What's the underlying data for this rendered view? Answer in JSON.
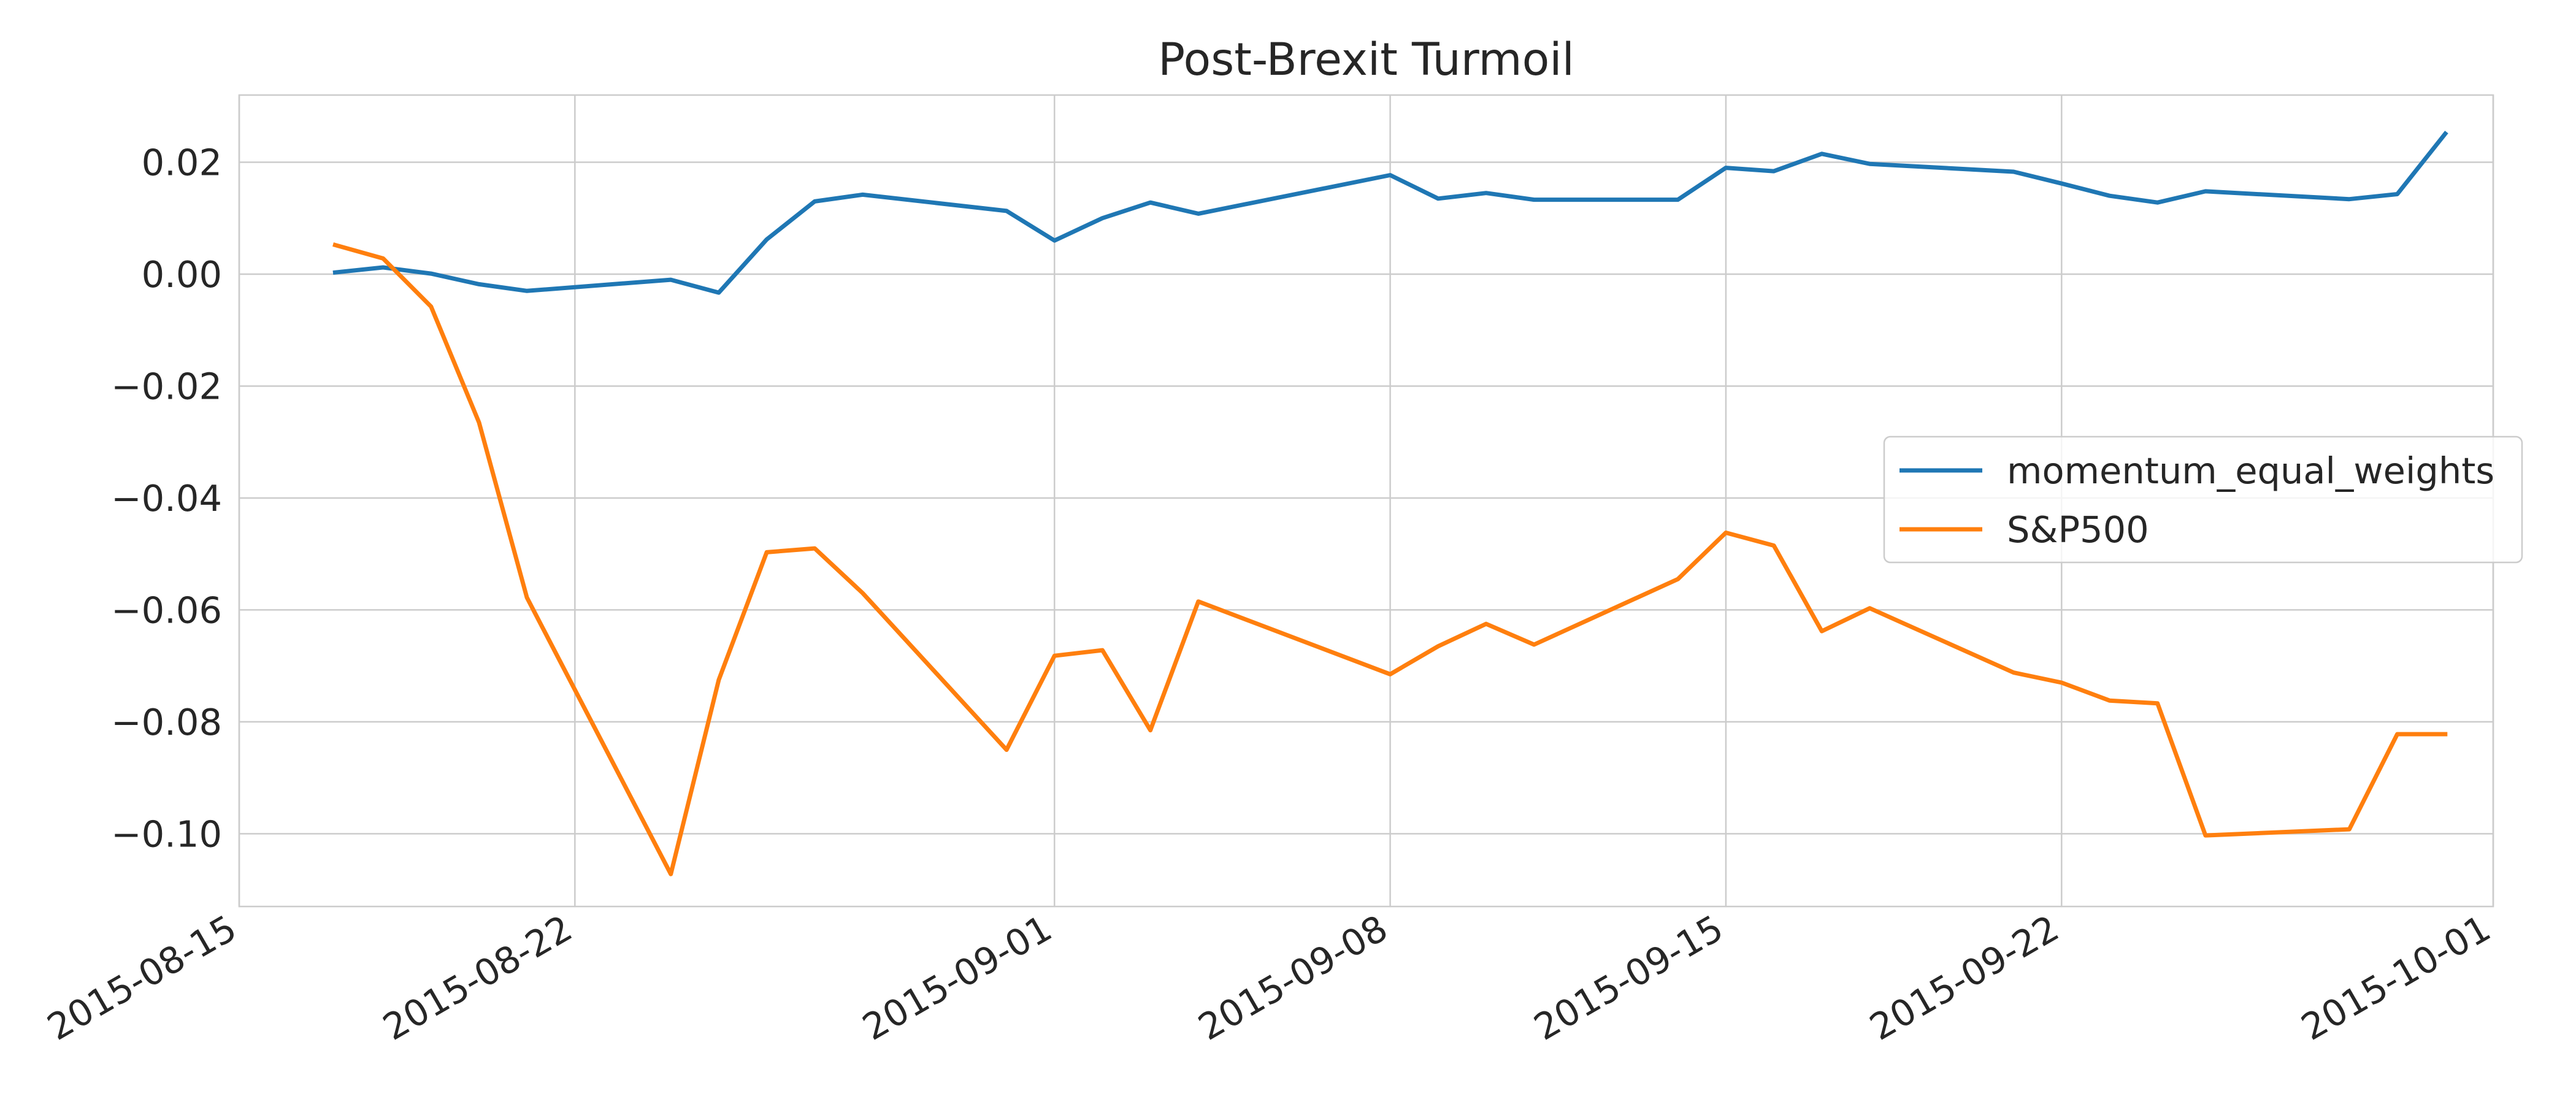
{
  "chart_data": {
    "type": "line",
    "title": "Post-Brexit Turmoil",
    "xlabel": "",
    "ylabel": "",
    "x_type": "date",
    "xlim": [
      "2015-08-15",
      "2015-10-01"
    ],
    "ylim": [
      -0.113,
      0.032
    ],
    "x_ticks": [
      "2015-08-15",
      "2015-08-22",
      "2015-09-01",
      "2015-09-08",
      "2015-09-15",
      "2015-09-22",
      "2015-10-01"
    ],
    "y_ticks": [
      0.02,
      0.0,
      -0.02,
      -0.04,
      -0.06,
      -0.08,
      -0.1
    ],
    "y_tick_labels": [
      "0.02",
      "0.00",
      "−0.02",
      "−0.04",
      "−0.06",
      "−0.08",
      "−0.10"
    ],
    "grid": true,
    "legend_position": "center-right",
    "x": [
      "2015-08-17",
      "2015-08-18",
      "2015-08-19",
      "2015-08-20",
      "2015-08-21",
      "2015-08-24",
      "2015-08-25",
      "2015-08-26",
      "2015-08-27",
      "2015-08-28",
      "2015-08-31",
      "2015-09-01",
      "2015-09-02",
      "2015-09-03",
      "2015-09-04",
      "2015-09-08",
      "2015-09-09",
      "2015-09-10",
      "2015-09-11",
      "2015-09-14",
      "2015-09-15",
      "2015-09-16",
      "2015-09-17",
      "2015-09-18",
      "2015-09-21",
      "2015-09-22",
      "2015-09-23",
      "2015-09-24",
      "2015-09-25",
      "2015-09-28",
      "2015-09-29",
      "2015-09-30"
    ],
    "series": [
      {
        "name": "momentum_equal_weights",
        "color": "#1f77b4",
        "values": [
          0.0003,
          0.0012,
          0.0001,
          -0.0018,
          -0.003,
          -0.001,
          -0.0033,
          0.0062,
          0.013,
          0.0142,
          0.0113,
          0.006,
          0.01,
          0.0128,
          0.0108,
          0.0177,
          0.0135,
          0.0145,
          0.0133,
          0.0133,
          0.019,
          0.0184,
          0.0215,
          0.0197,
          0.0183,
          0.0162,
          0.014,
          0.0128,
          0.0148,
          0.0134,
          0.0143,
          0.0251
        ]
      },
      {
        "name": "S&P500",
        "color": "#ff7f0e",
        "values": [
          0.0052,
          0.0028,
          -0.0058,
          -0.0265,
          -0.0578,
          -0.1072,
          -0.0725,
          -0.0497,
          -0.049,
          -0.057,
          -0.085,
          -0.0682,
          -0.0672,
          -0.0815,
          -0.0585,
          -0.0715,
          -0.0665,
          -0.0625,
          -0.0662,
          -0.0545,
          -0.0462,
          -0.0485,
          -0.0638,
          -0.0597,
          -0.0712,
          -0.073,
          -0.0762,
          -0.0767,
          -0.1003,
          -0.0992,
          -0.0822,
          -0.0822
        ]
      }
    ]
  }
}
